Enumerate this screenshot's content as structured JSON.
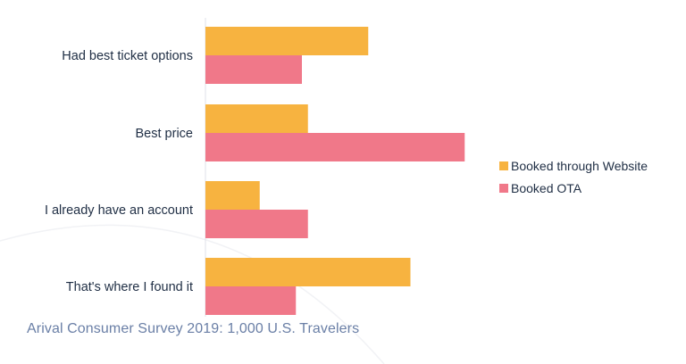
{
  "chart_data": {
    "type": "bar",
    "orientation": "horizontal",
    "categories": [
      "Had best ticket options",
      "Best price",
      "I already have an account",
      "That's where I found it"
    ],
    "series": [
      {
        "name": "Booked through Website",
        "color": "#f7b340",
        "values": [
          27,
          17,
          9,
          34
        ]
      },
      {
        "name": "Booked OTA",
        "color": "#f07889",
        "values": [
          16,
          43,
          17,
          15
        ]
      }
    ],
    "xlim": [
      0,
      50
    ],
    "grid": false,
    "legend_position": "right",
    "title": "",
    "xlabel": "",
    "ylabel": ""
  },
  "source_note": "Arival Consumer Survey 2019: 1,000 U.S. Travelers"
}
